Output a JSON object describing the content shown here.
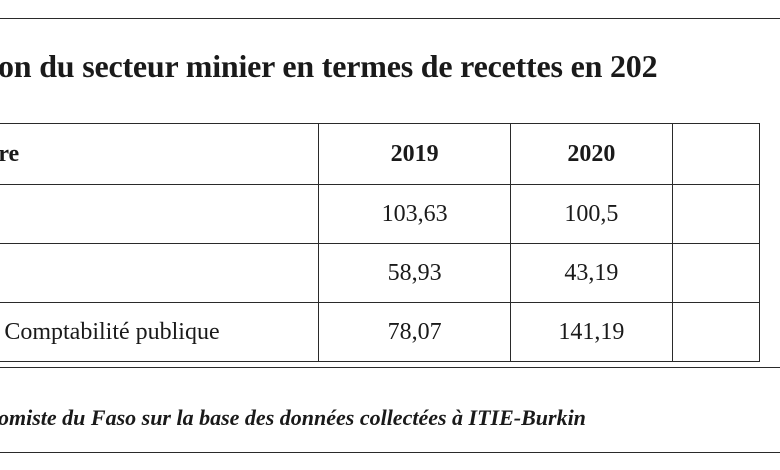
{
  "title": "on du secteur minier en termes de recettes en 202",
  "table": {
    "header": {
      "label": "ière",
      "years": [
        "2019",
        "2020",
        ""
      ]
    },
    "rows": [
      {
        "label": "",
        "values": [
          "103,63",
          "100,5",
          ""
        ]
      },
      {
        "label": "",
        "values": [
          "58,93",
          "43,19",
          ""
        ]
      },
      {
        "label": "la Comptabilité publique",
        "values": [
          "78,07",
          "141,19",
          ""
        ]
      }
    ]
  },
  "source": "omiste du Faso sur la base des données collectées à ITIE-Burkin"
}
